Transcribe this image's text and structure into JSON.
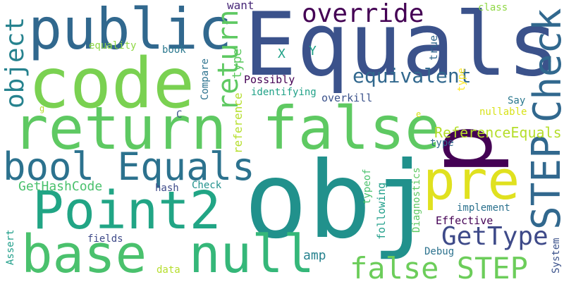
{
  "words": [
    {
      "text": "Equals",
      "color": "#3b528b"
    },
    {
      "text": "p",
      "color": "#440154"
    },
    {
      "text": "obj",
      "color": "#21918c"
    },
    {
      "text": "code",
      "color": "#7ad151"
    },
    {
      "text": "public",
      "color": "#31688e"
    },
    {
      "text": "return false",
      "color": "#5ec962"
    },
    {
      "text": "pre",
      "color": "#e0e11f"
    },
    {
      "text": "Point2",
      "color": "#21a585"
    },
    {
      "text": "base",
      "color": "#4ac16d"
    },
    {
      "text": "null",
      "color": "#35b779"
    },
    {
      "text": "bool Equals",
      "color": "#2c728e"
    },
    {
      "text": "Check",
      "color": "#31688e"
    },
    {
      "text": "STEP",
      "color": "#31688e"
    },
    {
      "text": "override",
      "color": "#440154"
    },
    {
      "text": "equivalent",
      "color": "#31688e"
    },
    {
      "text": "return",
      "color": "#5ec962"
    },
    {
      "text": "object",
      "color": "#26828e"
    },
    {
      "text": "GetType",
      "color": "#3e4a89"
    },
    {
      "text": "false STEP",
      "color": "#6ccd5a"
    },
    {
      "text": "ReferenceEquals",
      "color": "#b5de2b"
    },
    {
      "text": "GetHashCode",
      "color": "#4ac16d"
    },
    {
      "text": "want",
      "color": "#482878"
    },
    {
      "text": "type",
      "color": "#5ec962"
    },
    {
      "text": "X",
      "color": "#1fa187"
    },
    {
      "text": "Y",
      "color": "#1fa187"
    },
    {
      "text": "true",
      "color": "#31688e"
    },
    {
      "text": "class",
      "color": "#8fd744"
    },
    {
      "text": "equality",
      "color": "#8fd744"
    },
    {
      "text": "book",
      "color": "#2a788e"
    },
    {
      "text": "Compare",
      "color": "#2c728e"
    },
    {
      "text": "Possibly",
      "color": "#440154"
    },
    {
      "text": "identifying",
      "color": "#1fa187"
    },
    {
      "text": "overkill",
      "color": "#3b528b"
    },
    {
      "text": "reference",
      "color": "#b5de2b"
    },
    {
      "text": "type",
      "color": "#fde725"
    },
    {
      "text": "Say",
      "color": "#2a788e"
    },
    {
      "text": "nullable",
      "color": "#d8e219"
    },
    {
      "text": "type",
      "color": "#31688e"
    },
    {
      "text": "C",
      "color": "#3b528b"
    },
    {
      "text": "g",
      "color": "#b5de2b"
    },
    {
      "text": "e",
      "color": "#d8e219"
    },
    {
      "text": "hash",
      "color": "#3e4a89"
    },
    {
      "text": "Check",
      "color": "#21918c"
    },
    {
      "text": "typeof",
      "color": "#4ac16d"
    },
    {
      "text": "following",
      "color": "#1f9e89"
    },
    {
      "text": "Diagnostics",
      "color": "#5ec962"
    },
    {
      "text": "implement",
      "color": "#2c728e"
    },
    {
      "text": "Effective",
      "color": "#440154"
    },
    {
      "text": "fields",
      "color": "#3e4a89"
    },
    {
      "text": "amp",
      "color": "#26828e"
    },
    {
      "text": "Debug",
      "color": "#2c728e"
    },
    {
      "text": "Assert",
      "color": "#1f9e89"
    },
    {
      "text": "data",
      "color": "#b5de2b"
    },
    {
      "text": "System",
      "color": "#3b528b"
    }
  ]
}
